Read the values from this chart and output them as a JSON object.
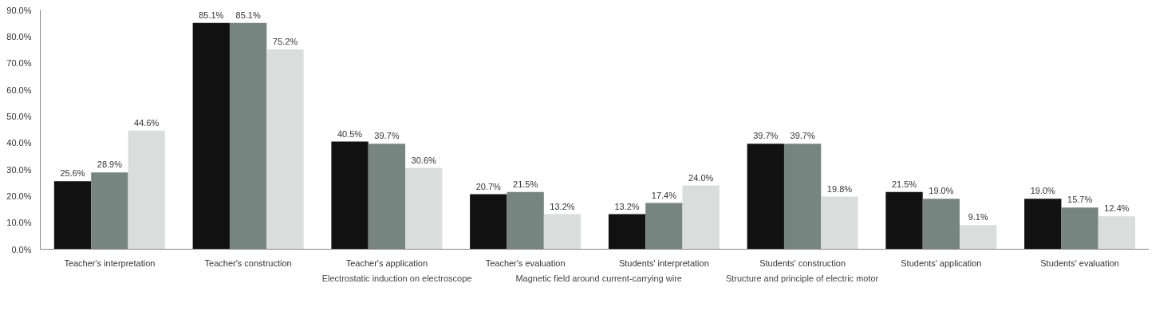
{
  "chart_data": {
    "type": "bar",
    "categories": [
      "Teacher's interpretation",
      "Teacher's construction",
      "Teacher's application",
      "Teacher's evaluation",
      "Students' interpretation",
      "Students' construction",
      "Students' application",
      "Students' evaluation"
    ],
    "series": [
      {
        "name": "Electrostatic induction on electroscope",
        "color": "#111111",
        "values": [
          25.6,
          85.1,
          40.5,
          20.7,
          13.2,
          39.7,
          21.5,
          19.0
        ],
        "value_labels": [
          "25.6%",
          "85.1%",
          "40.5%",
          "20.7%",
          "13.2%",
          "39.7%",
          "21.5%",
          "19.0%"
        ]
      },
      {
        "name": "Magnetic field around current-carrying wire",
        "color": "#778581",
        "values": [
          28.9,
          85.1,
          39.7,
          21.5,
          17.4,
          39.7,
          19.0,
          15.7
        ],
        "value_labels": [
          "28.9%",
          "85.1%",
          "39.7%",
          "21.5%",
          "17.4%",
          "39.7%",
          "19.0%",
          "15.7%"
        ]
      },
      {
        "name": "Structure and principle of electric motor",
        "color": "#d9dddc",
        "values": [
          44.6,
          75.2,
          30.6,
          13.2,
          24.0,
          19.8,
          9.1,
          12.4
        ],
        "value_labels": [
          "44.6%",
          "75.2%",
          "30.6%",
          "13.2%",
          "24.0%",
          "19.8%",
          "9.1%",
          "12.4%"
        ]
      }
    ],
    "ylim": [
      0,
      90
    ],
    "yticks": [
      {
        "value": 0,
        "label": "0.0%"
      },
      {
        "value": 10,
        "label": "10.0%"
      },
      {
        "value": 20,
        "label": "20.0%"
      },
      {
        "value": 30,
        "label": "30.0%"
      },
      {
        "value": 40,
        "label": "40.0%"
      },
      {
        "value": 50,
        "label": "50.0%"
      },
      {
        "value": 60,
        "label": "60.0%"
      },
      {
        "value": 70,
        "label": "70.0%"
      },
      {
        "value": 80,
        "label": "80.0%"
      },
      {
        "value": 90,
        "label": "90.0%"
      }
    ],
    "grid": false,
    "legend": "bottom"
  }
}
